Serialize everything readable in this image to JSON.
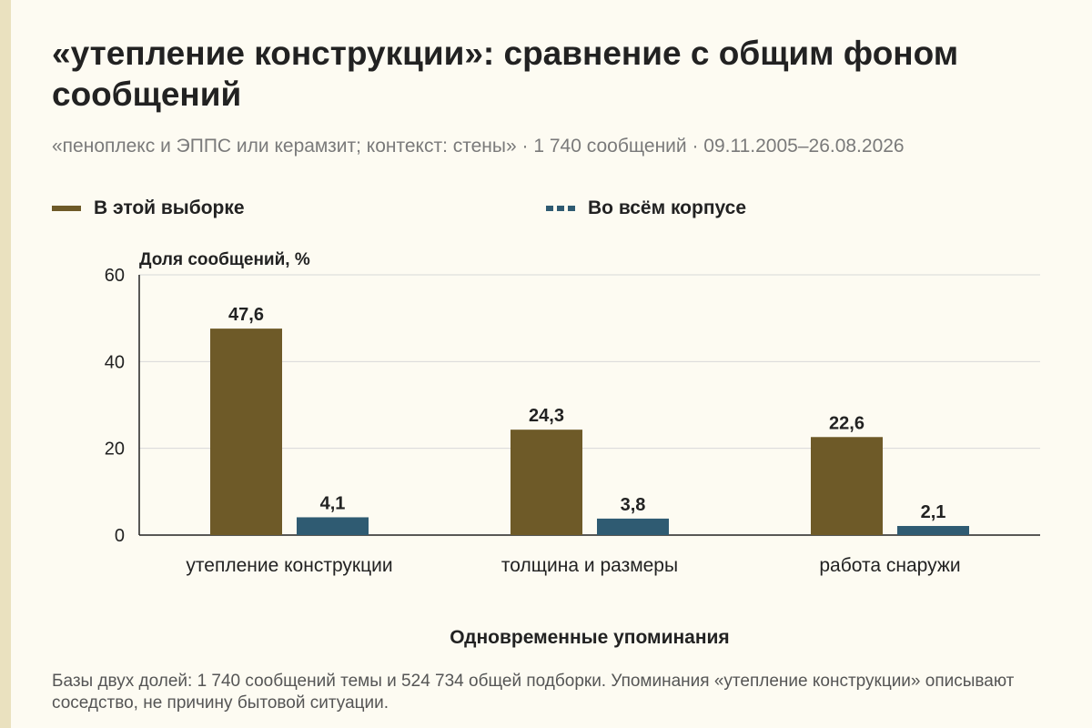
{
  "title": "«утепление конструкции»: сравнение с общим фоном сообщений",
  "subtitle": "«пеноплекс и ЭППС или керамзит; контекст: стены» · 1 740 сообщений · 09.11.2005–26.08.2026",
  "footnote": "Базы двух долей: 1 740 сообщений темы и 524 734 общей подборки. Упоминания «утепление конструкции» описывают соседство, не причину бытовой ситуации.",
  "colors": {
    "sample": "#6e5a28",
    "corpus": "#2f5b72",
    "grid": "#d8d8d8",
    "axis": "#222222"
  },
  "chart_data": {
    "type": "bar",
    "ylabel": "Доля сообщений, %",
    "xlabel": "Одновременные упоминания",
    "ylim": [
      0,
      60
    ],
    "yticks": [
      0,
      20,
      40,
      60
    ],
    "grid": true,
    "legend_placement": "top",
    "categories": [
      "утепление конструкции",
      "толщина и размеры",
      "работа снаружи"
    ],
    "series": [
      {
        "name": "В этой выборке",
        "values": [
          47.6,
          24.3,
          22.6
        ],
        "labels": [
          "47,6",
          "24,3",
          "22,6"
        ],
        "color": "#6e5a28",
        "swatch": "solid"
      },
      {
        "name": "Во всём корпусе",
        "values": [
          4.1,
          3.8,
          2.1
        ],
        "labels": [
          "4,1",
          "3,8",
          "2,1"
        ],
        "color": "#2f5b72",
        "swatch": "dashed"
      }
    ]
  }
}
